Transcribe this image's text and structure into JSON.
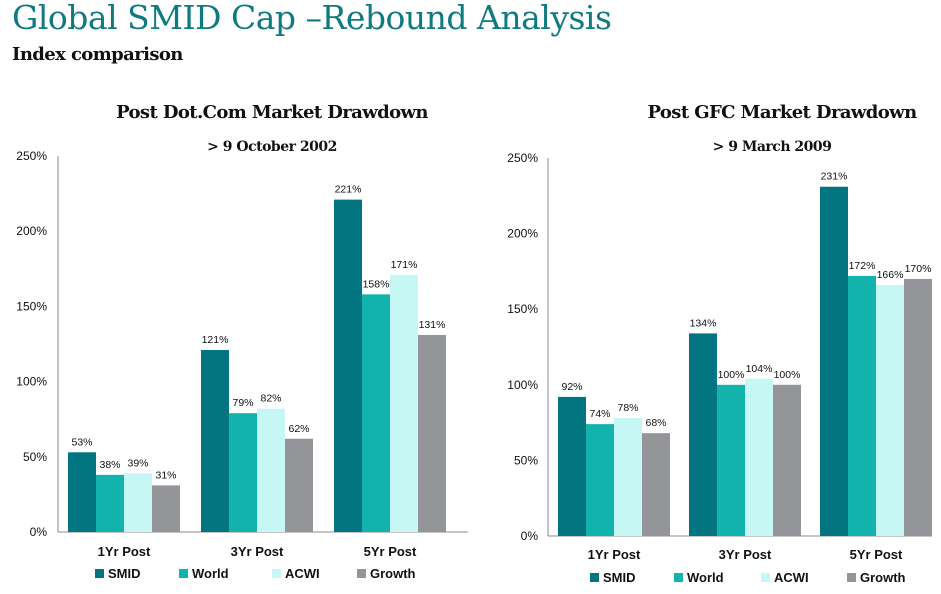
{
  "header": {
    "title": "Global SMID Cap –Rebound Analysis",
    "subtitle": "Index comparison"
  },
  "colors": {
    "SMID": "#037580",
    "World": "#12b3ac",
    "ACWI": "#c6f7f5",
    "Growth": "#949598",
    "title": "#0f7a7f",
    "axis": "#888888"
  },
  "chart_data": [
    {
      "type": "bar",
      "title": "Post  Dot.Com Market Drawdown",
      "subtitle": "> 9 October 2002",
      "categories": [
        "1Yr Post",
        "3Yr Post",
        "5Yr Post"
      ],
      "series": [
        {
          "name": "SMID",
          "values": [
            53,
            121,
            221
          ]
        },
        {
          "name": "World",
          "values": [
            38,
            79,
            158
          ]
        },
        {
          "name": "ACWI",
          "values": [
            39,
            82,
            171
          ]
        },
        {
          "name": "Growth",
          "values": [
            31,
            62,
            131
          ]
        }
      ],
      "yticks": [
        "0%",
        "50%",
        "100%",
        "150%",
        "200%",
        "250%"
      ],
      "ylim": [
        0,
        250
      ],
      "xlabel": "",
      "ylabel": "",
      "grid": false,
      "legend": "bottom"
    },
    {
      "type": "bar",
      "title": "Post GFC Market Drawdown",
      "subtitle": "> 9 March 2009",
      "categories": [
        "1Yr Post",
        "3Yr Post",
        "5Yr Post"
      ],
      "series": [
        {
          "name": "SMID",
          "values": [
            92,
            134,
            231
          ]
        },
        {
          "name": "World",
          "values": [
            74,
            100,
            172
          ]
        },
        {
          "name": "ACWI",
          "values": [
            78,
            104,
            166
          ]
        },
        {
          "name": "Growth",
          "values": [
            68,
            100,
            170
          ]
        }
      ],
      "yticks": [
        "0%",
        "50%",
        "100%",
        "150%",
        "200%",
        "250%"
      ],
      "ylim": [
        0,
        250
      ],
      "xlabel": "",
      "ylabel": "",
      "grid": false,
      "legend": "bottom"
    }
  ]
}
